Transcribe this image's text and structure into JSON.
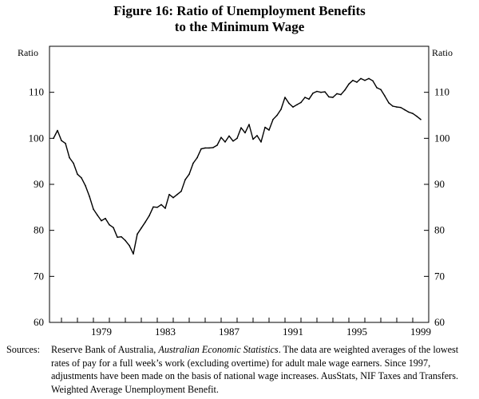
{
  "title": [
    "Figure 16: Ratio of Unemployment Benefits",
    "to the Minimum Wage"
  ],
  "chart_data": {
    "type": "line",
    "title": "Figure 16: Ratio of Unemployment Benefits to the Minimum Wage",
    "ylabel_left": "Ratio",
    "ylabel_right": "Ratio",
    "ylim": [
      60,
      120
    ],
    "yticks": [
      60,
      70,
      80,
      90,
      100,
      110
    ],
    "xlim": [
      1976.25,
      2000.0
    ],
    "xticks": [
      1979,
      1983,
      1987,
      1991,
      1995,
      1999
    ],
    "grid": false,
    "series": [
      {
        "name": "Ratio",
        "x": [
          1976.5,
          1976.75,
          1977.0,
          1977.25,
          1977.5,
          1977.75,
          1978.0,
          1978.25,
          1978.5,
          1978.75,
          1979.0,
          1979.25,
          1979.5,
          1979.75,
          1980.0,
          1980.25,
          1980.5,
          1980.75,
          1981.0,
          1981.25,
          1981.5,
          1981.75,
          1982.0,
          1982.25,
          1982.5,
          1982.75,
          1983.0,
          1983.25,
          1983.5,
          1983.75,
          1984.0,
          1984.25,
          1984.5,
          1984.75,
          1985.0,
          1985.25,
          1985.5,
          1985.75,
          1986.0,
          1986.25,
          1986.5,
          1986.75,
          1987.0,
          1987.25,
          1987.5,
          1987.75,
          1988.0,
          1988.25,
          1988.5,
          1988.75,
          1989.0,
          1989.25,
          1989.5,
          1989.75,
          1990.0,
          1990.25,
          1990.5,
          1990.75,
          1991.0,
          1991.25,
          1991.5,
          1991.75,
          1992.0,
          1992.25,
          1992.5,
          1992.75,
          1993.0,
          1993.25,
          1993.5,
          1993.75,
          1994.0,
          1994.25,
          1994.5,
          1994.75,
          1995.0,
          1995.25,
          1995.5,
          1995.75,
          1996.0,
          1996.25,
          1996.5,
          1996.75,
          1997.0,
          1997.25,
          1997.5,
          1997.75,
          1998.0,
          1998.25,
          1998.5,
          1998.75,
          1999.0,
          1999.25,
          1999.5
        ],
        "y": [
          100.0,
          101.7,
          99.5,
          98.9,
          95.8,
          94.6,
          92.2,
          91.4,
          89.7,
          87.4,
          84.6,
          83.3,
          82.1,
          82.6,
          81.2,
          80.6,
          78.5,
          78.6,
          77.8,
          76.7,
          74.9,
          79.2,
          80.5,
          81.8,
          83.2,
          85.1,
          85.0,
          85.6,
          84.8,
          87.8,
          87.1,
          87.8,
          88.5,
          91.0,
          92.2,
          94.6,
          95.8,
          97.7,
          97.9,
          97.9,
          98.0,
          98.5,
          100.2,
          99.2,
          100.5,
          99.4,
          100.0,
          102.3,
          101.2,
          103.0,
          99.8,
          100.6,
          99.2,
          102.4,
          101.8,
          104.1,
          105.0,
          106.3,
          108.9,
          107.6,
          106.8,
          107.3,
          107.8,
          108.9,
          108.5,
          109.8,
          110.2,
          110.0,
          110.1,
          109.0,
          108.9,
          109.7,
          109.5,
          110.5,
          111.8,
          112.6,
          112.2,
          113.0,
          112.6,
          113.0,
          112.5,
          111.0,
          110.6,
          109.2,
          107.7,
          107.0,
          106.8,
          106.7,
          106.2,
          105.7,
          105.4,
          104.8,
          104.1
        ]
      }
    ]
  },
  "sources": {
    "label": "Sources:",
    "pre": "Reserve Bank of Australia, ",
    "italic": "Australian Economic Statistics",
    "post": ". The data are weighted averages of the lowest rates of pay for a full week’s work (excluding overtime) for adult male wage earners. Since 1997, adjustments have been made on the basis of national wage increases. AusStats, NIF Taxes and Transfers. Weighted Average Unemployment Benefit."
  }
}
